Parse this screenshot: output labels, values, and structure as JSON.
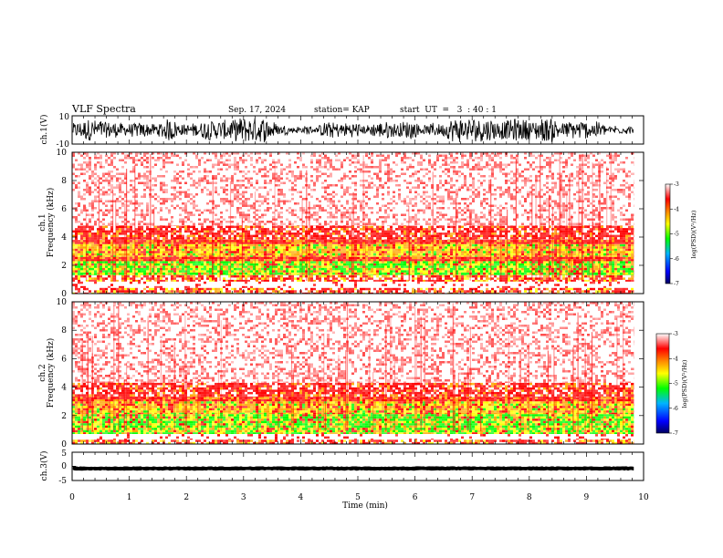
{
  "header": {
    "title": "VLF Spectra",
    "date": "Sep. 17, 2024",
    "station": "station= KAP",
    "start": "start  UT  =   3  : 40 : 1"
  },
  "chart_data": [
    {
      "type": "line",
      "id": "ch1-waveform",
      "ylabel": "ch.1(V)",
      "ylim": [
        -10,
        10
      ],
      "yticks": [
        "10",
        "-10"
      ],
      "xlim": [
        0,
        10
      ],
      "data_end_min": 9.83,
      "approx_range": [
        -9,
        9
      ],
      "color": "#000000"
    },
    {
      "type": "heatmap",
      "id": "ch1-spectrogram",
      "ylabel": "ch.1",
      "ylabel2": "Frequency (kHz)",
      "ylim": [
        0,
        10
      ],
      "yticks": [
        "0",
        "2",
        "4",
        "6",
        "8",
        "10"
      ],
      "xlim": [
        0,
        10
      ],
      "data_end_min": 9.83,
      "bands": [
        {
          "f0": 0.0,
          "f1": 0.4,
          "level": "mixed"
        },
        {
          "f0": 0.4,
          "f1": 0.85,
          "level": "white"
        },
        {
          "f0": 0.85,
          "f1": 1.3,
          "level": "mixed"
        },
        {
          "f0": 1.3,
          "f1": 2.3,
          "level": "green"
        },
        {
          "f0": 2.3,
          "f1": 2.6,
          "level": "red"
        },
        {
          "f0": 2.6,
          "f1": 3.5,
          "level": "orange"
        },
        {
          "f0": 3.5,
          "f1": 3.8,
          "level": "red"
        },
        {
          "f0": 3.8,
          "f1": 4.8,
          "level": "red-mid"
        },
        {
          "f0": 4.8,
          "f1": 10.0,
          "level": "red-sparse"
        }
      ],
      "colorbar": {
        "label": "log(PSD)(V²/Hz)",
        "ticks": [
          "-3",
          "-4",
          "-5",
          "-6",
          "-7"
        ],
        "range": [
          -7,
          -3
        ]
      }
    },
    {
      "type": "heatmap",
      "id": "ch2-spectrogram",
      "ylabel": "ch.2",
      "ylabel2": "Frequency (kHz)",
      "ylim": [
        0,
        10
      ],
      "yticks": [
        "0",
        "2",
        "4",
        "6",
        "8",
        "10"
      ],
      "xlim": [
        0,
        10
      ],
      "data_end_min": 9.83,
      "bands": [
        {
          "f0": 0.0,
          "f1": 0.3,
          "level": "mixed"
        },
        {
          "f0": 0.3,
          "f1": 0.7,
          "level": "white"
        },
        {
          "f0": 0.7,
          "f1": 2.1,
          "level": "green"
        },
        {
          "f0": 2.1,
          "f1": 3.0,
          "level": "orange"
        },
        {
          "f0": 3.0,
          "f1": 3.3,
          "level": "red"
        },
        {
          "f0": 3.3,
          "f1": 4.3,
          "level": "red-mid"
        },
        {
          "f0": 4.3,
          "f1": 10.0,
          "level": "red-sparse"
        }
      ],
      "colorbar": {
        "label": "log(PSD)(V²/Hz)",
        "ticks": [
          "-3",
          "-4",
          "-5",
          "-6",
          "-7"
        ],
        "range": [
          -7,
          -3
        ]
      }
    },
    {
      "type": "line",
      "id": "ch3-waveform",
      "ylabel": "ch.3(V)",
      "ylim": [
        -5,
        5
      ],
      "yticks": [
        "5",
        "0",
        "-5"
      ],
      "xlim": [
        0,
        10
      ],
      "data_end_min": 9.83,
      "approx_range": [
        -1.2,
        -0.3
      ],
      "color": "#000000"
    }
  ],
  "xaxis": {
    "label": "Time (min)",
    "ticks": [
      "0",
      "1",
      "2",
      "3",
      "4",
      "5",
      "6",
      "7",
      "8",
      "9",
      "10"
    ]
  },
  "colors": {
    "white": "#ffffff",
    "red": "#ff0000",
    "orange": "#ffa500",
    "yellow": "#ffff00",
    "green": "#00ff00",
    "blue": "#0000ff",
    "navy": "#000060"
  }
}
